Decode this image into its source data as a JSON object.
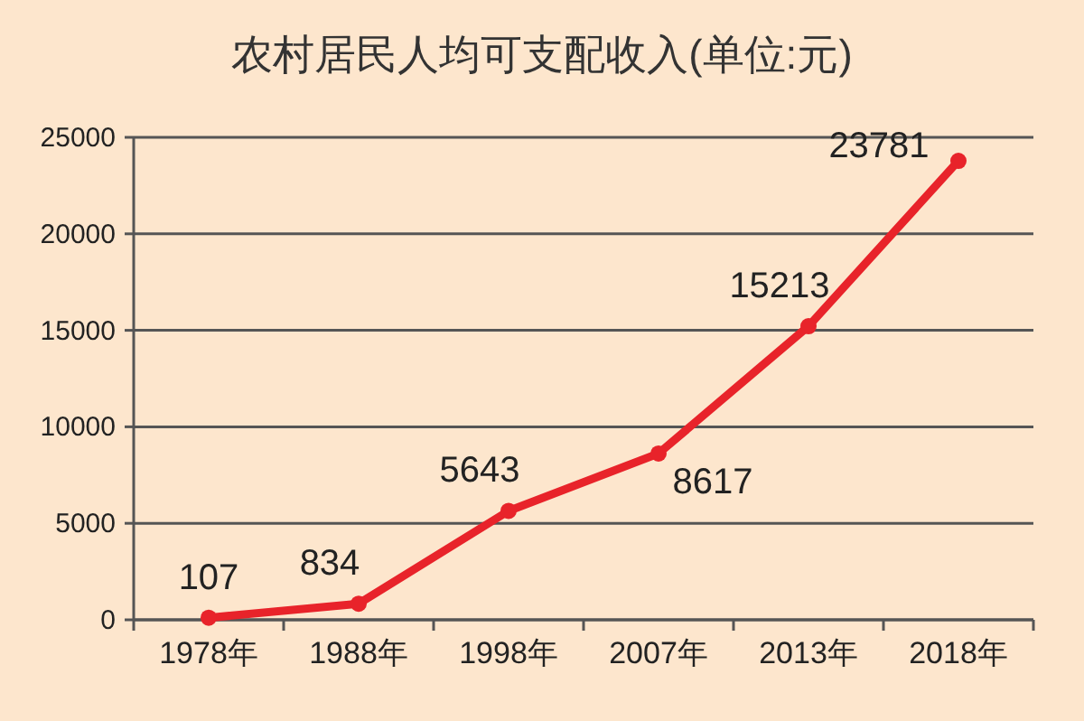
{
  "chart_data": {
    "type": "line",
    "title": "农村居民人均可支配收入(单位:元)",
    "categories": [
      "1978年",
      "1988年",
      "1998年",
      "2007年",
      "2013年",
      "2018年"
    ],
    "series": [
      {
        "color": "#e8232a",
        "values": [
          107,
          834,
          5643,
          8617,
          15213,
          23781
        ]
      }
    ],
    "ylim": [
      0,
      25000
    ],
    "yticks": [
      0,
      5000,
      10000,
      15000,
      20000,
      25000
    ],
    "grid": "y",
    "marker": "circle",
    "line_style": "solid",
    "data_labels": true
  }
}
